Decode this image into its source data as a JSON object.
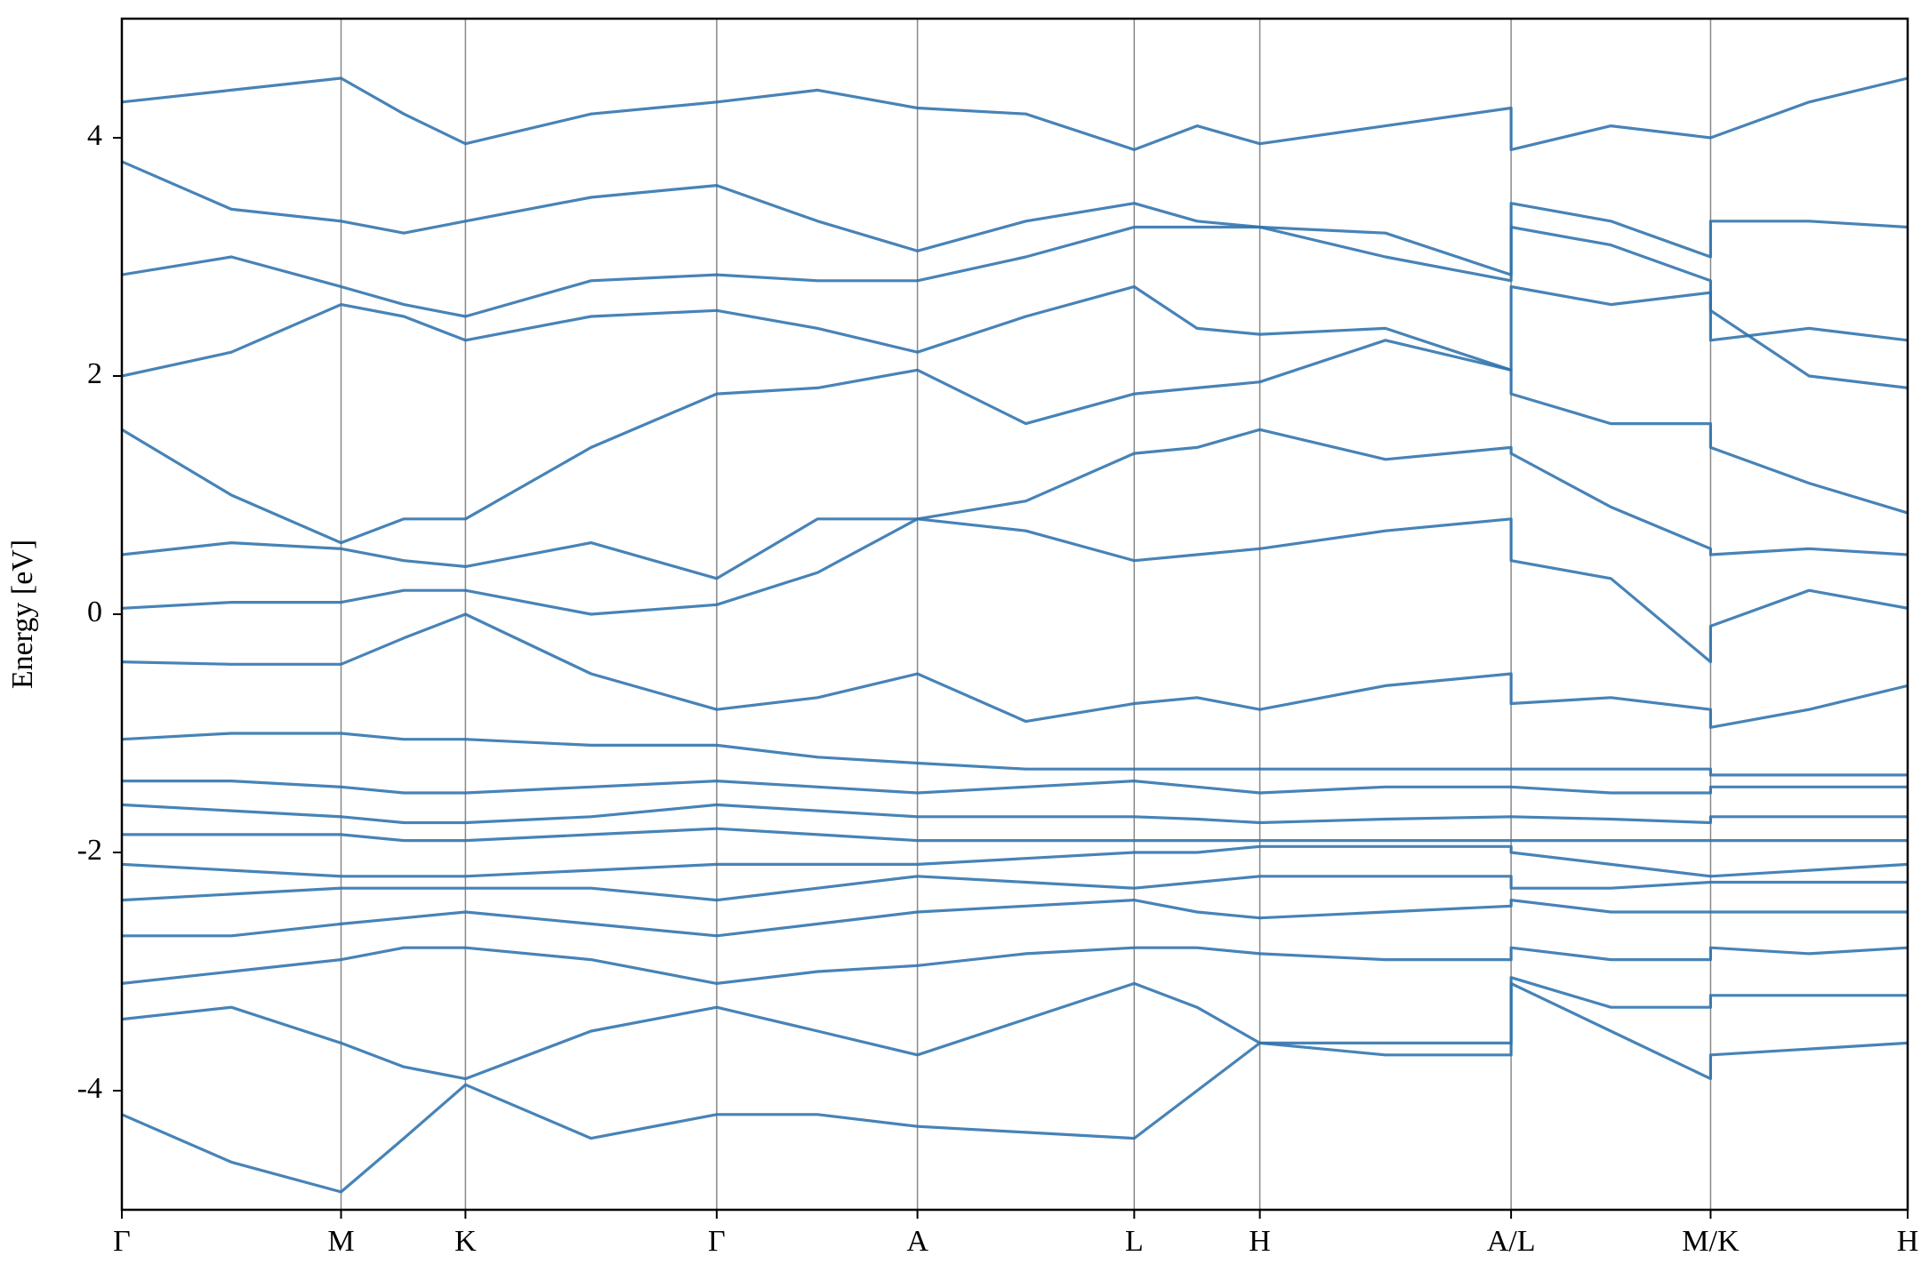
{
  "chart_data": {
    "type": "line",
    "ylabel": "Energy [eV]",
    "color": "#2e72ad",
    "xlim": [
      0,
      14.5
    ],
    "ylim": [
      -5,
      5
    ],
    "yticks": [
      -4,
      -2,
      0,
      2,
      4
    ],
    "xticks": [
      {
        "value": 0,
        "label": "Γ"
      },
      {
        "value": 1.78,
        "label": "M"
      },
      {
        "value": 2.79,
        "label": "K"
      },
      {
        "value": 4.83,
        "label": "Γ"
      },
      {
        "value": 6.46,
        "label": "A"
      },
      {
        "value": 8.22,
        "label": "L"
      },
      {
        "value": 9.24,
        "label": "H"
      },
      {
        "value": 11.28,
        "label": "A/L"
      },
      {
        "value": 12.9,
        "label": "M/K"
      },
      {
        "value": 14.5,
        "label": "H"
      }
    ],
    "grid": true,
    "x": [
      0,
      0.89,
      1.78,
      2.29,
      2.79,
      3.81,
      4.83,
      5.65,
      6.46,
      7.34,
      8.22,
      8.73,
      9.24,
      10.26,
      11.28,
      11.28,
      12.09,
      12.9,
      12.9,
      13.7,
      14.5
    ],
    "series": [
      {
        "values": [
          -4.2,
          -4.6,
          -4.85,
          -4.4,
          -3.95,
          -4.4,
          -4.2,
          -4.2,
          -4.3,
          -4.35,
          -4.4,
          -4.0,
          -3.6,
          -3.7,
          -3.7,
          -3.1,
          -3.5,
          -3.9,
          -3.7,
          -3.65,
          -3.6
        ]
      },
      {
        "values": [
          -3.4,
          -3.3,
          -3.6,
          -3.8,
          -3.9,
          -3.5,
          -3.3,
          -3.5,
          -3.7,
          -3.4,
          -3.1,
          -3.3,
          -3.6,
          -3.6,
          -3.6,
          -3.05,
          -3.3,
          -3.3,
          -3.2,
          -3.2,
          -3.2
        ]
      },
      {
        "values": [
          -3.1,
          -3.0,
          -2.9,
          -2.8,
          -2.8,
          -2.9,
          -3.1,
          -3.0,
          -2.95,
          -2.85,
          -2.8,
          -2.8,
          -2.85,
          -2.9,
          -2.9,
          -2.8,
          -2.9,
          -2.9,
          -2.8,
          -2.85,
          -2.8
        ]
      },
      {
        "values": [
          -2.7,
          -2.7,
          -2.6,
          -2.55,
          -2.5,
          -2.6,
          -2.7,
          -2.6,
          -2.5,
          -2.45,
          -2.4,
          -2.5,
          -2.55,
          -2.5,
          -2.45,
          -2.4,
          -2.5,
          -2.5,
          -2.5,
          -2.5,
          -2.5
        ]
      },
      {
        "values": [
          -2.4,
          -2.35,
          -2.3,
          -2.3,
          -2.3,
          -2.3,
          -2.4,
          -2.3,
          -2.2,
          -2.25,
          -2.3,
          -2.25,
          -2.2,
          -2.2,
          -2.2,
          -2.3,
          -2.3,
          -2.25,
          -2.25,
          -2.25,
          -2.25
        ]
      },
      {
        "values": [
          -2.1,
          -2.15,
          -2.2,
          -2.2,
          -2.2,
          -2.15,
          -2.1,
          -2.1,
          -2.1,
          -2.05,
          -2.0,
          -2.0,
          -1.95,
          -1.95,
          -1.95,
          -2.0,
          -2.1,
          -2.2,
          -2.2,
          -2.15,
          -2.1
        ]
      },
      {
        "values": [
          -1.85,
          -1.85,
          -1.85,
          -1.9,
          -1.9,
          -1.85,
          -1.8,
          -1.85,
          -1.9,
          -1.9,
          -1.9,
          -1.9,
          -1.9,
          -1.9,
          -1.9,
          -1.9,
          -1.9,
          -1.9,
          -1.9,
          -1.9,
          -1.9
        ]
      },
      {
        "values": [
          -1.6,
          -1.65,
          -1.7,
          -1.75,
          -1.75,
          -1.7,
          -1.6,
          -1.65,
          -1.7,
          -1.7,
          -1.7,
          -1.72,
          -1.75,
          -1.72,
          -1.7,
          -1.7,
          -1.72,
          -1.75,
          -1.7,
          -1.7,
          -1.7
        ]
      },
      {
        "values": [
          -1.4,
          -1.4,
          -1.45,
          -1.5,
          -1.5,
          -1.45,
          -1.4,
          -1.45,
          -1.5,
          -1.45,
          -1.4,
          -1.45,
          -1.5,
          -1.45,
          -1.45,
          -1.45,
          -1.5,
          -1.5,
          -1.45,
          -1.45,
          -1.45
        ]
      },
      {
        "values": [
          -1.05,
          -1.0,
          -1.0,
          -1.05,
          -1.05,
          -1.1,
          -1.1,
          -1.2,
          -1.25,
          -1.3,
          -1.3,
          -1.3,
          -1.3,
          -1.3,
          -1.3,
          -1.3,
          -1.3,
          -1.3,
          -1.35,
          -1.35,
          -1.35
        ]
      },
      {
        "values": [
          -0.4,
          -0.42,
          -0.42,
          -0.2,
          0.0,
          -0.5,
          -0.8,
          -0.7,
          -0.5,
          -0.9,
          -0.75,
          -0.7,
          -0.8,
          -0.6,
          -0.5,
          -0.75,
          -0.7,
          -0.8,
          -0.95,
          -0.8,
          -0.6
        ]
      },
      {
        "values": [
          0.05,
          0.1,
          0.1,
          0.2,
          0.2,
          0.0,
          0.08,
          0.35,
          0.8,
          0.7,
          0.45,
          0.5,
          0.55,
          0.7,
          0.8,
          0.45,
          0.3,
          -0.4,
          -0.1,
          0.2,
          0.05
        ]
      },
      {
        "values": [
          0.5,
          0.6,
          0.55,
          0.45,
          0.4,
          0.6,
          0.3,
          0.8,
          0.8,
          0.95,
          1.35,
          1.4,
          1.55,
          1.3,
          1.4,
          1.35,
          0.9,
          0.55,
          0.5,
          0.55,
          0.5
        ]
      },
      {
        "values": [
          1.55,
          1.0,
          0.6,
          0.8,
          0.8,
          1.4,
          1.85,
          1.9,
          2.05,
          1.6,
          1.85,
          1.9,
          1.95,
          2.3,
          2.05,
          1.85,
          1.6,
          1.6,
          1.4,
          1.1,
          0.85
        ]
      },
      {
        "values": [
          2.0,
          2.2,
          2.6,
          2.5,
          2.3,
          2.5,
          2.55,
          2.4,
          2.2,
          2.5,
          2.75,
          2.4,
          2.35,
          2.4,
          2.05,
          2.75,
          2.6,
          2.7,
          2.55,
          2.0,
          1.9
        ]
      },
      {
        "values": [
          2.85,
          3.0,
          2.75,
          2.6,
          2.5,
          2.8,
          2.85,
          2.8,
          2.8,
          3.0,
          3.25,
          3.25,
          3.25,
          3.0,
          2.8,
          3.25,
          3.1,
          2.8,
          2.3,
          2.4,
          2.3
        ]
      },
      {
        "values": [
          3.8,
          3.4,
          3.3,
          3.2,
          3.3,
          3.5,
          3.6,
          3.3,
          3.05,
          3.3,
          3.45,
          3.3,
          3.25,
          3.2,
          2.85,
          3.45,
          3.3,
          3.0,
          3.3,
          3.3,
          3.25
        ]
      },
      {
        "values": [
          4.3,
          4.4,
          4.5,
          4.2,
          3.95,
          4.2,
          4.3,
          4.4,
          4.25,
          4.2,
          3.9,
          4.1,
          3.95,
          4.1,
          4.25,
          3.9,
          4.1,
          4.0,
          4.0,
          4.3,
          4.5
        ]
      }
    ]
  }
}
